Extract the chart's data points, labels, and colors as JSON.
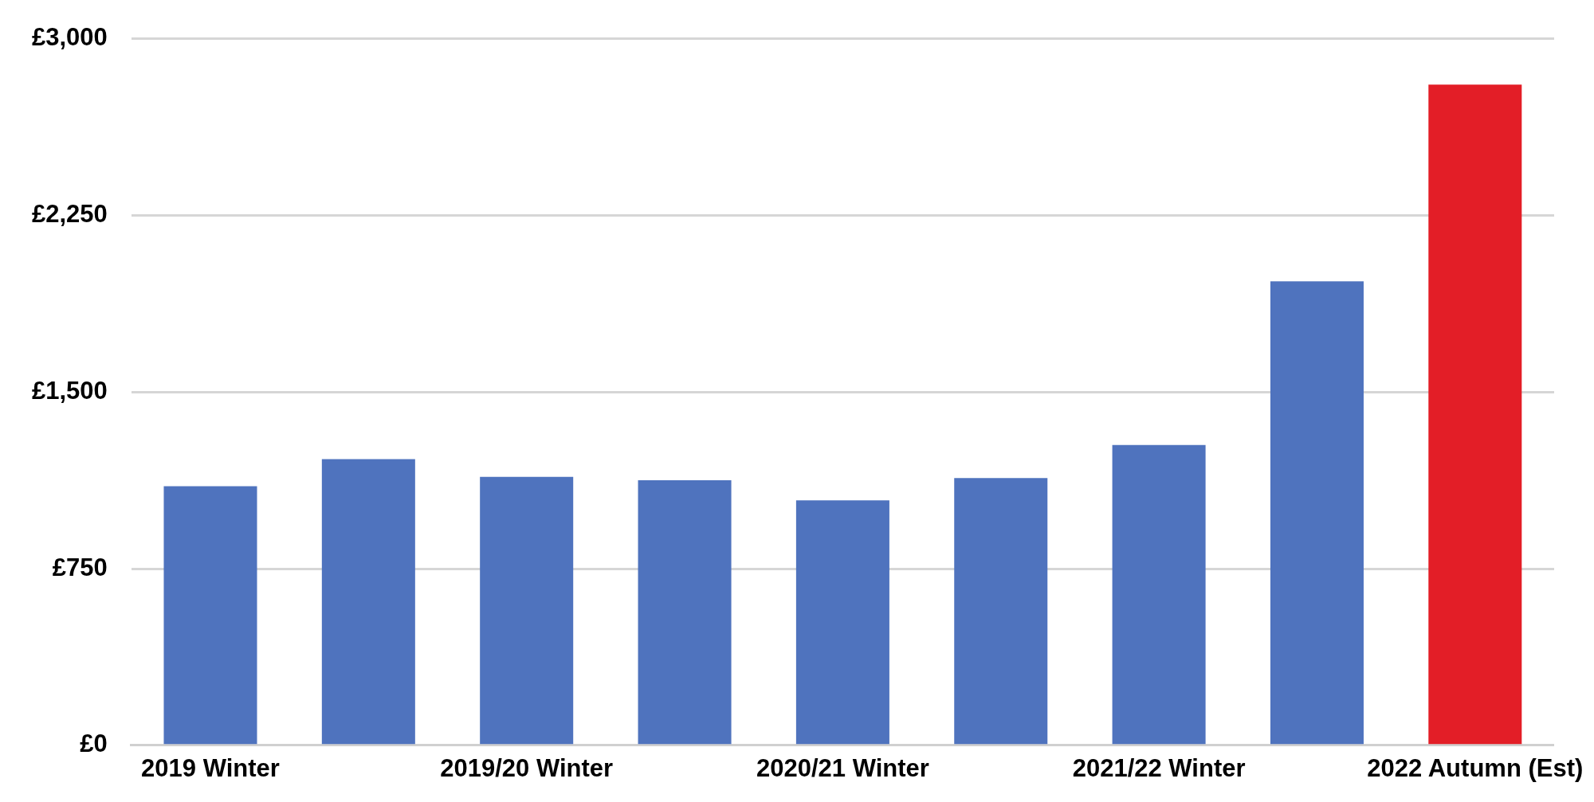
{
  "chart_data": {
    "type": "bar",
    "categories": [
      "2019 Winter",
      null,
      "2019/20 Winter",
      null,
      "2020/21 Winter",
      null,
      "2021/22 Winter",
      null,
      "2022 Autumn (Est)"
    ],
    "values": [
      1100,
      1215,
      1140,
      1125,
      1040,
      1135,
      1275,
      1970,
      2805
    ],
    "colors": [
      "#4f73be",
      "#4f73be",
      "#4f73be",
      "#4f73be",
      "#4f73be",
      "#4f73be",
      "#4f73be",
      "#4f73be",
      "#e31e27"
    ],
    "ylim": [
      0,
      3000
    ],
    "yticks": [
      {
        "value": 0,
        "label": "£0"
      },
      {
        "value": 750,
        "label": "£750"
      },
      {
        "value": 1500,
        "label": "£1,500"
      },
      {
        "value": 2250,
        "label": "£2,250"
      },
      {
        "value": 3000,
        "label": "£3,000"
      }
    ],
    "grid": "y"
  }
}
